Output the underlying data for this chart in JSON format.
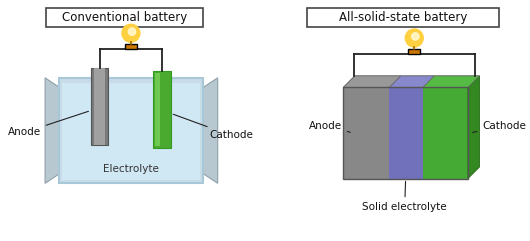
{
  "bg_color": "#ffffff",
  "title1": "Conventional battery",
  "title2": "All-solid-state battery",
  "label_anode1": "Anode",
  "label_cathode1": "Cathode",
  "label_electrolyte1": "Electrolyte",
  "label_anode2": "Anode",
  "label_cathode2": "Cathode",
  "label_electrolyte2": "Solid electrolyte",
  "color_anode_dark": "#7a7a7a",
  "color_anode_light": "#a0a0a0",
  "color_cathode": "#4aaa30",
  "color_cathode_dark": "#339922",
  "color_electrolyte_liquid": "#c8dce8",
  "color_electrolyte_solid": "#7070bb",
  "color_electrolyte_solid_top": "#9090cc",
  "color_container_outer": "#a8c8d8",
  "color_container_inner": "#d0e8f4",
  "color_wing": "#b8c8d0",
  "color_wing_dark": "#8090a0",
  "color_wire": "#222222",
  "color_bulb_glass": "#ffd040",
  "color_bulb_bright": "#fff8cc",
  "color_bulb_base": "#cc7700",
  "color_title_box": "#ffffff",
  "color_title_border": "#444444",
  "font_size_title": 8.5,
  "font_size_label": 7.5
}
